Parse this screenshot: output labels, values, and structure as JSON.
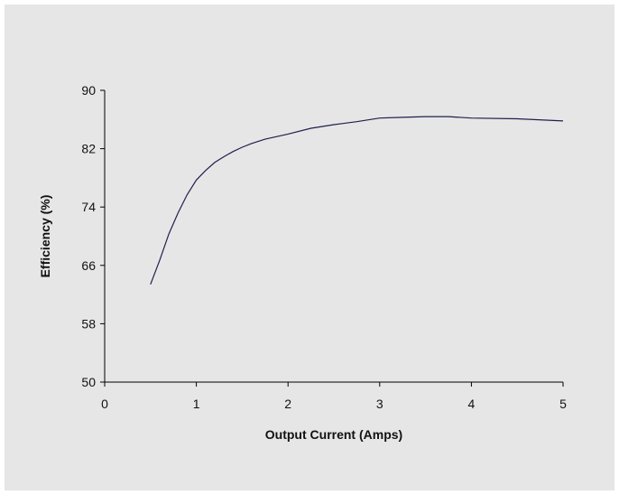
{
  "colors": {
    "background": "#e6e6e6",
    "axis": "#000000",
    "line": "#1f1f4f"
  },
  "chart_data": {
    "type": "line",
    "title": "",
    "xlabel": "Output Current (Amps)",
    "ylabel": "Efficiency (%)",
    "xlim": [
      0,
      5
    ],
    "ylim": [
      50,
      90
    ],
    "xticks": [
      "0",
      "1",
      "2",
      "3",
      "4",
      "5"
    ],
    "yticks": [
      "50",
      "58",
      "66",
      "74",
      "82",
      "90"
    ],
    "grid": false,
    "legend": "none",
    "series": [
      {
        "x": [
          0.5,
          0.6,
          0.7,
          0.8,
          0.9,
          1.0,
          1.1,
          1.2,
          1.3,
          1.4,
          1.5,
          1.6,
          1.75,
          2.0,
          2.25,
          2.5,
          2.75,
          3.0,
          3.25,
          3.5,
          3.75,
          4.0,
          4.5,
          5.0
        ],
        "y": [
          63.4,
          66.7,
          70.3,
          73.2,
          75.7,
          77.7,
          79.0,
          80.1,
          80.9,
          81.6,
          82.2,
          82.7,
          83.3,
          84.0,
          84.8,
          85.3,
          85.7,
          86.2,
          86.3,
          86.4,
          86.4,
          86.2,
          86.1,
          85.8
        ]
      }
    ]
  }
}
